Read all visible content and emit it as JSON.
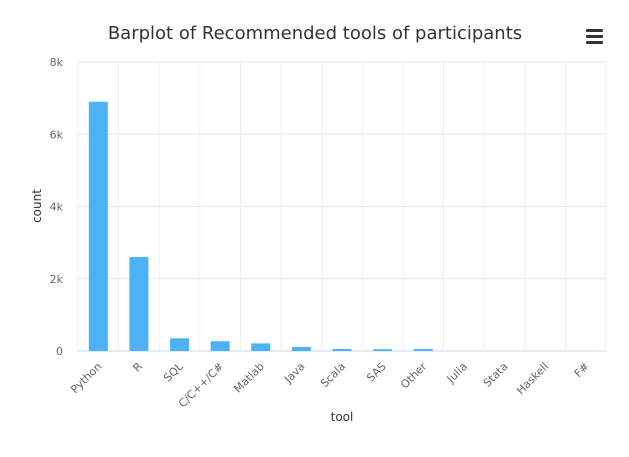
{
  "chart_data": {
    "type": "bar",
    "title": "Barplot of Recommended tools of participants",
    "xlabel": "tool",
    "ylabel": "count",
    "categories": [
      "Python",
      "R",
      "SQL",
      "C/C++/C#",
      "Matlab",
      "Java",
      "Scala",
      "SAS",
      "Other",
      "Julia",
      "Stata",
      "Haskell",
      "F#"
    ],
    "values": [
      6900,
      2600,
      350,
      270,
      210,
      110,
      55,
      50,
      55,
      0,
      0,
      0,
      0
    ],
    "ylim": [
      0,
      8000
    ],
    "yticks": [
      {
        "value": 0,
        "label": "0"
      },
      {
        "value": 2000,
        "label": "2k"
      },
      {
        "value": 4000,
        "label": "4k"
      },
      {
        "value": 6000,
        "label": "6k"
      },
      {
        "value": 8000,
        "label": "8k"
      }
    ],
    "grid": true,
    "bar_color": "#4db1f7"
  },
  "menu": {
    "icon": "hamburger-menu-icon"
  }
}
